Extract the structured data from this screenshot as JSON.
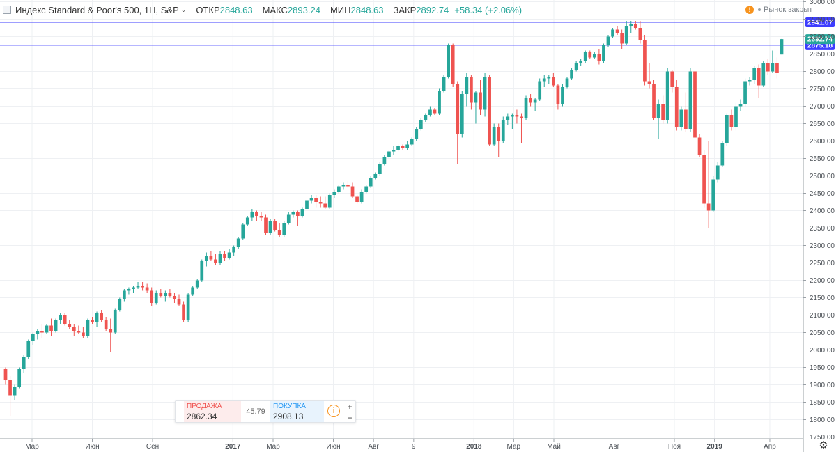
{
  "legend": {
    "symbol_title": "Индекс Standard & Poor's 500, 1Н, S&P",
    "open_label": "ОТКР",
    "open_value": "2848.63",
    "high_label": "МАКС",
    "high_value": "2893.24",
    "low_label": "МИН",
    "low_value": "2848.63",
    "close_label": "ЗАКР",
    "close_value": "2892.74",
    "change": "+58.34 (+2.06%)"
  },
  "market_status": {
    "icon": "warning-icon",
    "text": "Рынок закрыт"
  },
  "trade_panel": {
    "sell_label": "ПРОДАЖА",
    "sell_price": "2862.34",
    "spread": "45.79",
    "buy_label": "ПОКУПКА",
    "buy_price": "2908.13",
    "info_icon": "info-icon",
    "zoom_in": "+",
    "zoom_out": "−"
  },
  "chart_data": {
    "type": "candlestick",
    "colors": {
      "up": "#26a69a",
      "down": "#ef5350",
      "hline": "#3d3dff",
      "last_price": "#26a69a"
    },
    "y_ticks": [
      "3000.00",
      "2950.00",
      "2900.00",
      "2850.00",
      "2800.00",
      "2750.00",
      "2700.00",
      "2650.00",
      "2600.00",
      "2550.00",
      "2500.00",
      "2450.00",
      "2400.00",
      "2350.00",
      "2300.00",
      "2250.00",
      "2200.00",
      "2150.00",
      "2100.00",
      "2050.00",
      "2000.00",
      "1950.00",
      "1900.00",
      "1850.00",
      "1800.00",
      "1750.00"
    ],
    "ylim": [
      1745,
      3005
    ],
    "x_labels": [
      {
        "label": "Мар",
        "bold": false,
        "week": 5.8
      },
      {
        "label": "Июн",
        "bold": false,
        "week": 19.0
      },
      {
        "label": "Сен",
        "bold": false,
        "week": 32.2
      },
      {
        "label": "2017",
        "bold": true,
        "week": 49.8
      },
      {
        "label": "Мар",
        "bold": false,
        "week": 58.6
      },
      {
        "label": "Июн",
        "bold": false,
        "week": 71.8
      },
      {
        "label": "Авг",
        "bold": false,
        "week": 80.6
      },
      {
        "label": "9",
        "bold": false,
        "week": 89.4
      },
      {
        "label": "2018",
        "bold": true,
        "week": 102.6
      },
      {
        "label": "Мар",
        "bold": false,
        "week": 111.3
      },
      {
        "label": "Май",
        "bold": false,
        "week": 120.1
      },
      {
        "label": "Авг",
        "bold": false,
        "week": 133.3
      },
      {
        "label": "Ноя",
        "bold": false,
        "week": 146.5
      },
      {
        "label": "2019",
        "bold": true,
        "week": 155.3
      },
      {
        "label": "Апр",
        "bold": false,
        "week": 167.4
      }
    ],
    "horizontal_lines": [
      {
        "value": 2941.07,
        "label": "2941.07"
      },
      {
        "value": 2875.18,
        "label": "2875.18"
      }
    ],
    "last_price": {
      "value": 2892.74,
      "label": "2892.74"
    },
    "candles": [
      [
        1945,
        1950,
        1900,
        1915
      ],
      [
        1915,
        1925,
        1810,
        1870
      ],
      [
        1870,
        1900,
        1855,
        1895
      ],
      [
        1895,
        1950,
        1890,
        1945
      ],
      [
        1945,
        1985,
        1935,
        1980
      ],
      [
        1980,
        2030,
        1975,
        2025
      ],
      [
        2025,
        2050,
        2015,
        2045
      ],
      [
        2045,
        2060,
        2030,
        2055
      ],
      [
        2055,
        2075,
        2035,
        2050
      ],
      [
        2050,
        2075,
        2045,
        2070
      ],
      [
        2070,
        2090,
        2040,
        2055
      ],
      [
        2055,
        2090,
        2050,
        2085
      ],
      [
        2085,
        2105,
        2075,
        2100
      ],
      [
        2100,
        2105,
        2070,
        2075
      ],
      [
        2075,
        2085,
        2060,
        2065
      ],
      [
        2065,
        2075,
        2040,
        2055
      ],
      [
        2055,
        2070,
        2045,
        2050
      ],
      [
        2050,
        2065,
        2035,
        2040
      ],
      [
        2040,
        2090,
        2035,
        2085
      ],
      [
        2085,
        2095,
        2075,
        2080
      ],
      [
        2080,
        2110,
        2065,
        2105
      ],
      [
        2105,
        2115,
        2080,
        2085
      ],
      [
        2085,
        2095,
        2055,
        2060
      ],
      [
        2060,
        2090,
        1995,
        2050
      ],
      [
        2050,
        2120,
        2045,
        2115
      ],
      [
        2115,
        2150,
        2110,
        2145
      ],
      [
        2145,
        2175,
        2140,
        2170
      ],
      [
        2170,
        2180,
        2160,
        2175
      ],
      [
        2175,
        2185,
        2165,
        2180
      ],
      [
        2180,
        2195,
        2175,
        2185
      ],
      [
        2185,
        2195,
        2170,
        2180
      ],
      [
        2180,
        2190,
        2165,
        2170
      ],
      [
        2170,
        2180,
        2125,
        2135
      ],
      [
        2135,
        2170,
        2130,
        2165
      ],
      [
        2165,
        2175,
        2150,
        2155
      ],
      [
        2155,
        2170,
        2140,
        2165
      ],
      [
        2165,
        2175,
        2150,
        2155
      ],
      [
        2155,
        2165,
        2135,
        2145
      ],
      [
        2145,
        2160,
        2125,
        2130
      ],
      [
        2130,
        2140,
        2080,
        2085
      ],
      [
        2085,
        2165,
        2080,
        2160
      ],
      [
        2160,
        2185,
        2155,
        2180
      ],
      [
        2180,
        2205,
        2175,
        2200
      ],
      [
        2200,
        2260,
        2195,
        2255
      ],
      [
        2255,
        2280,
        2240,
        2270
      ],
      [
        2270,
        2285,
        2255,
        2260
      ],
      [
        2260,
        2275,
        2245,
        2250
      ],
      [
        2250,
        2285,
        2245,
        2275
      ],
      [
        2275,
        2285,
        2255,
        2265
      ],
      [
        2265,
        2290,
        2260,
        2280
      ],
      [
        2280,
        2300,
        2270,
        2295
      ],
      [
        2295,
        2325,
        2290,
        2320
      ],
      [
        2320,
        2365,
        2315,
        2360
      ],
      [
        2360,
        2385,
        2355,
        2380
      ],
      [
        2380,
        2405,
        2370,
        2395
      ],
      [
        2395,
        2400,
        2370,
        2385
      ],
      [
        2385,
        2395,
        2370,
        2380
      ],
      [
        2380,
        2390,
        2330,
        2335
      ],
      [
        2335,
        2375,
        2330,
        2370
      ],
      [
        2370,
        2375,
        2340,
        2345
      ],
      [
        2345,
        2365,
        2325,
        2330
      ],
      [
        2330,
        2370,
        2325,
        2365
      ],
      [
        2365,
        2395,
        2360,
        2390
      ],
      [
        2390,
        2400,
        2380,
        2395
      ],
      [
        2395,
        2400,
        2355,
        2385
      ],
      [
        2385,
        2410,
        2380,
        2405
      ],
      [
        2405,
        2435,
        2400,
        2430
      ],
      [
        2430,
        2445,
        2420,
        2435
      ],
      [
        2435,
        2445,
        2410,
        2425
      ],
      [
        2425,
        2440,
        2410,
        2420
      ],
      [
        2420,
        2440,
        2405,
        2410
      ],
      [
        2410,
        2450,
        2405,
        2445
      ],
      [
        2445,
        2460,
        2435,
        2455
      ],
      [
        2455,
        2475,
        2450,
        2470
      ],
      [
        2470,
        2480,
        2460,
        2475
      ],
      [
        2475,
        2485,
        2465,
        2470
      ],
      [
        2470,
        2480,
        2435,
        2440
      ],
      [
        2440,
        2445,
        2420,
        2425
      ],
      [
        2425,
        2460,
        2420,
        2455
      ],
      [
        2455,
        2475,
        2450,
        2470
      ],
      [
        2470,
        2500,
        2465,
        2495
      ],
      [
        2495,
        2510,
        2490,
        2505
      ],
      [
        2505,
        2540,
        2500,
        2535
      ],
      [
        2535,
        2560,
        2530,
        2555
      ],
      [
        2555,
        2575,
        2550,
        2570
      ],
      [
        2570,
        2585,
        2560,
        2575
      ],
      [
        2575,
        2590,
        2570,
        2585
      ],
      [
        2585,
        2590,
        2575,
        2580
      ],
      [
        2580,
        2600,
        2575,
        2590
      ],
      [
        2590,
        2610,
        2585,
        2605
      ],
      [
        2605,
        2640,
        2600,
        2635
      ],
      [
        2635,
        2665,
        2630,
        2660
      ],
      [
        2660,
        2680,
        2655,
        2675
      ],
      [
        2675,
        2700,
        2670,
        2690
      ],
      [
        2690,
        2695,
        2675,
        2680
      ],
      [
        2680,
        2750,
        2675,
        2745
      ],
      [
        2745,
        2790,
        2740,
        2785
      ],
      [
        2785,
        2880,
        2780,
        2875
      ],
      [
        2875,
        2880,
        2755,
        2765
      ],
      [
        2765,
        2770,
        2535,
        2620
      ],
      [
        2620,
        2745,
        2610,
        2735
      ],
      [
        2735,
        2795,
        2700,
        2785
      ],
      [
        2785,
        2790,
        2690,
        2710
      ],
      [
        2710,
        2745,
        2650,
        2740
      ],
      [
        2740,
        2775,
        2675,
        2690
      ],
      [
        2690,
        2795,
        2670,
        2785
      ],
      [
        2785,
        2790,
        2585,
        2590
      ],
      [
        2590,
        2650,
        2585,
        2640
      ],
      [
        2640,
        2650,
        2555,
        2600
      ],
      [
        2600,
        2670,
        2595,
        2660
      ],
      [
        2660,
        2680,
        2645,
        2670
      ],
      [
        2670,
        2680,
        2635,
        2675
      ],
      [
        2675,
        2690,
        2650,
        2670
      ],
      [
        2670,
        2680,
        2595,
        2665
      ],
      [
        2665,
        2730,
        2660,
        2725
      ],
      [
        2725,
        2735,
        2700,
        2710
      ],
      [
        2710,
        2725,
        2685,
        2720
      ],
      [
        2720,
        2780,
        2715,
        2770
      ],
      [
        2770,
        2790,
        2755,
        2780
      ],
      [
        2780,
        2790,
        2765,
        2785
      ],
      [
        2785,
        2795,
        2755,
        2760
      ],
      [
        2760,
        2765,
        2690,
        2705
      ],
      [
        2705,
        2765,
        2700,
        2755
      ],
      [
        2755,
        2785,
        2750,
        2780
      ],
      [
        2780,
        2810,
        2775,
        2805
      ],
      [
        2805,
        2830,
        2800,
        2825
      ],
      [
        2825,
        2835,
        2815,
        2830
      ],
      [
        2830,
        2860,
        2825,
        2855
      ],
      [
        2855,
        2860,
        2835,
        2840
      ],
      [
        2840,
        2855,
        2835,
        2850
      ],
      [
        2850,
        2865,
        2820,
        2830
      ],
      [
        2830,
        2880,
        2825,
        2875
      ],
      [
        2875,
        2905,
        2870,
        2900
      ],
      [
        2900,
        2925,
        2895,
        2920
      ],
      [
        2920,
        2930,
        2905,
        2910
      ],
      [
        2910,
        2920,
        2865,
        2880
      ],
      [
        2880,
        2945,
        2875,
        2930
      ],
      [
        2930,
        2945,
        2910,
        2935
      ],
      [
        2935,
        2945,
        2920,
        2925
      ],
      [
        2925,
        2945,
        2880,
        2890
      ],
      [
        2890,
        2905,
        2760,
        2770
      ],
      [
        2770,
        2825,
        2750,
        2765
      ],
      [
        2765,
        2775,
        2660,
        2665
      ],
      [
        2665,
        2720,
        2605,
        2705
      ],
      [
        2705,
        2730,
        2650,
        2660
      ],
      [
        2660,
        2810,
        2650,
        2800
      ],
      [
        2800,
        2805,
        2740,
        2755
      ],
      [
        2755,
        2775,
        2630,
        2640
      ],
      [
        2640,
        2700,
        2630,
        2690
      ],
      [
        2690,
        2740,
        2625,
        2635
      ],
      [
        2635,
        2810,
        2625,
        2800
      ],
      [
        2800,
        2805,
        2590,
        2610
      ],
      [
        2610,
        2620,
        2555,
        2560
      ],
      [
        2560,
        2575,
        2410,
        2420
      ],
      [
        2420,
        2600,
        2350,
        2400
      ],
      [
        2400,
        2500,
        2395,
        2490
      ],
      [
        2490,
        2540,
        2480,
        2530
      ],
      [
        2530,
        2600,
        2525,
        2595
      ],
      [
        2595,
        2680,
        2585,
        2675
      ],
      [
        2675,
        2690,
        2630,
        2640
      ],
      [
        2640,
        2710,
        2630,
        2700
      ],
      [
        2700,
        2720,
        2685,
        2705
      ],
      [
        2705,
        2780,
        2700,
        2770
      ],
      [
        2770,
        2785,
        2760,
        2775
      ],
      [
        2775,
        2815,
        2765,
        2810
      ],
      [
        2810,
        2820,
        2725,
        2760
      ],
      [
        2760,
        2830,
        2755,
        2825
      ],
      [
        2825,
        2835,
        2790,
        2800
      ],
      [
        2800,
        2860,
        2795,
        2825
      ],
      [
        2825,
        2840,
        2780,
        2795
      ],
      [
        2848.63,
        2893.24,
        2848.63,
        2892.74
      ]
    ]
  }
}
